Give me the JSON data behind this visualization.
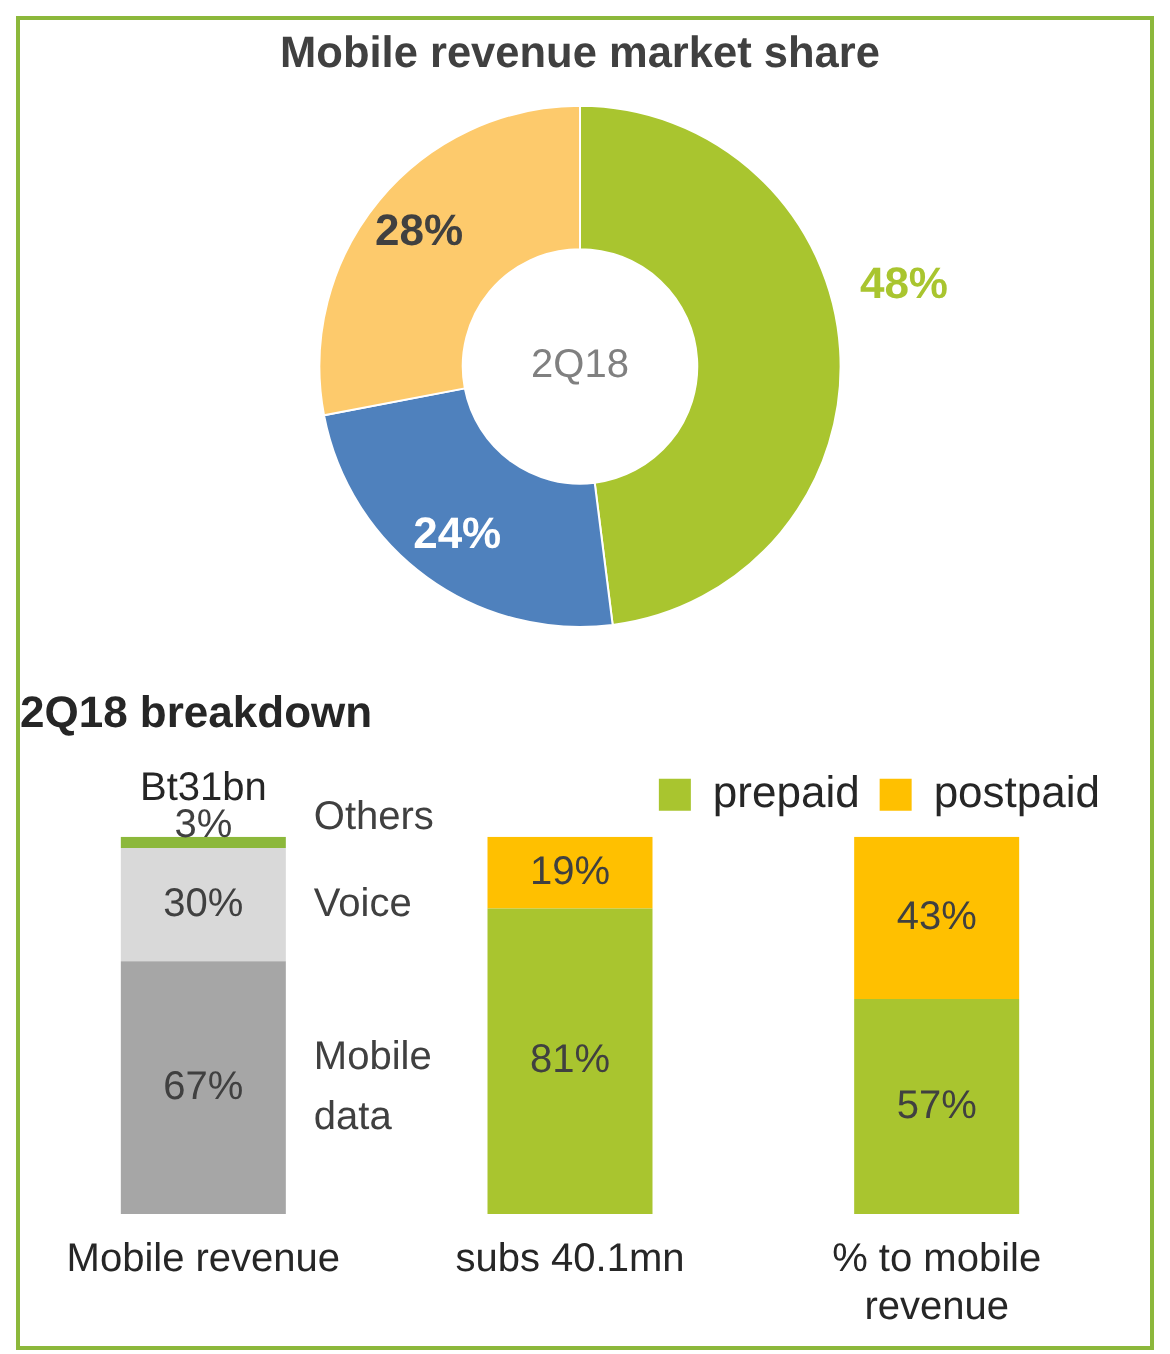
{
  "chart_data": [
    {
      "type": "donut",
      "title": "Mobile revenue market share",
      "categories": [
        null,
        null,
        null
      ],
      "values": [
        48,
        24,
        28
      ],
      "colors": [
        "#a9c52f",
        "#4f81bd",
        "#fdca6c"
      ],
      "value_labels": [
        "48%",
        "24%",
        "28%"
      ],
      "legend": false,
      "annotations": [
        "2Q18"
      ]
    },
    {
      "type": "bar",
      "title": "2Q18 breakdown",
      "stacked": true,
      "categories": [
        "Mobile revenue",
        "subs 40.1mn",
        "% to mobile revenue"
      ],
      "series": [
        {
          "name": "Mobile data",
          "color": "#a6a6a6",
          "values": [
            67,
            null,
            null
          ],
          "value_labels": [
            "67%",
            null,
            null
          ]
        },
        {
          "name": "Voice",
          "color": "#d9d9d9",
          "values": [
            30,
            null,
            null
          ],
          "value_labels": [
            "30%",
            null,
            null
          ]
        },
        {
          "name": "Others",
          "color": "#8cb83b",
          "values": [
            3,
            null,
            null
          ],
          "value_labels": [
            "3%",
            null,
            null
          ]
        },
        {
          "name": "prepaid",
          "color": "#a9c52f",
          "values": [
            null,
            81,
            57
          ],
          "value_labels": [
            null,
            "81%",
            "57%"
          ]
        },
        {
          "name": "postpaid",
          "color": "#ffc000",
          "values": [
            null,
            19,
            43
          ],
          "value_labels": [
            null,
            "19%",
            "43%"
          ]
        }
      ],
      "totals": [
        "Bt31bn",
        null,
        null
      ],
      "legend": "top right",
      "tick_labels": "x",
      "grid": false
    }
  ]
}
